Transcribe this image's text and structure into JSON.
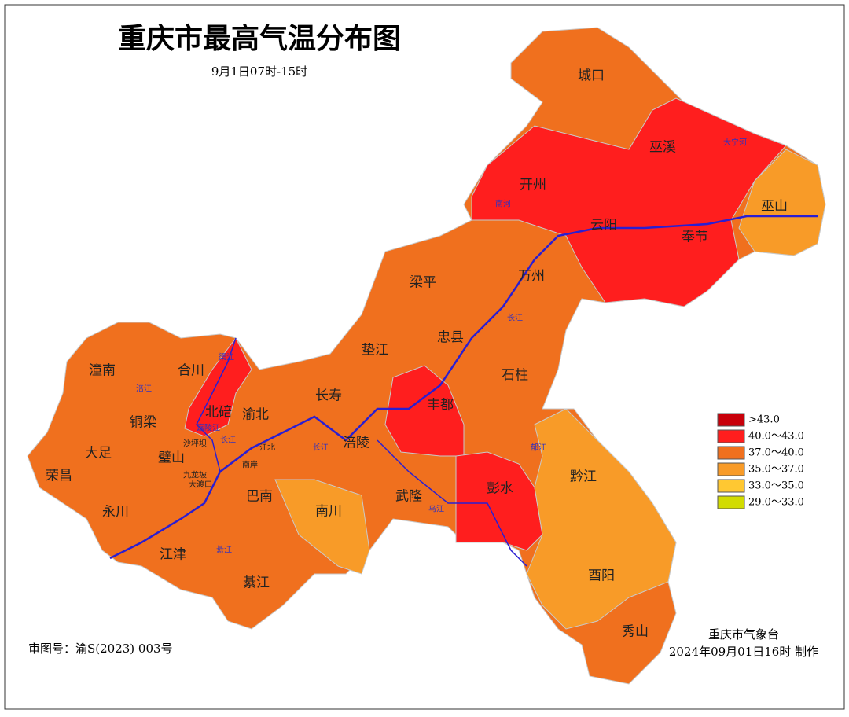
{
  "title": "重庆市最高气温分布图",
  "subtitle": "9月1日07时-15时",
  "districts": [
    "城口",
    "巫溪",
    "开州",
    "云阳",
    "巫山",
    "奉节",
    "万州",
    "梁平",
    "忠县",
    "垫江",
    "石柱",
    "丰都",
    "长寿",
    "涪陵",
    "潼南",
    "合川",
    "北碚",
    "渝北",
    "铜梁",
    "大足",
    "璧山",
    "荣昌",
    "永川",
    "江津",
    "巴南",
    "南川",
    "武隆",
    "彭水",
    "黔江",
    "酉阳",
    "秀山",
    "綦江"
  ],
  "small_labels": [
    "沙坪坝",
    "九龙坡",
    "大渡口",
    "南岸",
    "江北",
    "嘉陵江",
    "涪江",
    "渠江",
    "长江",
    "长江",
    "长江",
    "乌江",
    "綦江",
    "大宁河",
    "南河",
    "郁江"
  ],
  "legend": [
    {
      "label": ">43.0",
      "color": "#c8000a"
    },
    {
      "label": "40.0～43.0",
      "color": "#ff1e1e"
    },
    {
      "label": "37.0～40.0",
      "color": "#f0701e"
    },
    {
      "label": "35.0～37.0",
      "color": "#f89b28"
    },
    {
      "label": "33.0～35.0",
      "color": "#ffc832"
    },
    {
      "label": "29.0～33.0",
      "color": "#d2dc00"
    }
  ],
  "approval": "审图号：渝S(2023) 003号",
  "issuer": "重庆市气象台",
  "produced": "2024年09月01日16时 制作"
}
